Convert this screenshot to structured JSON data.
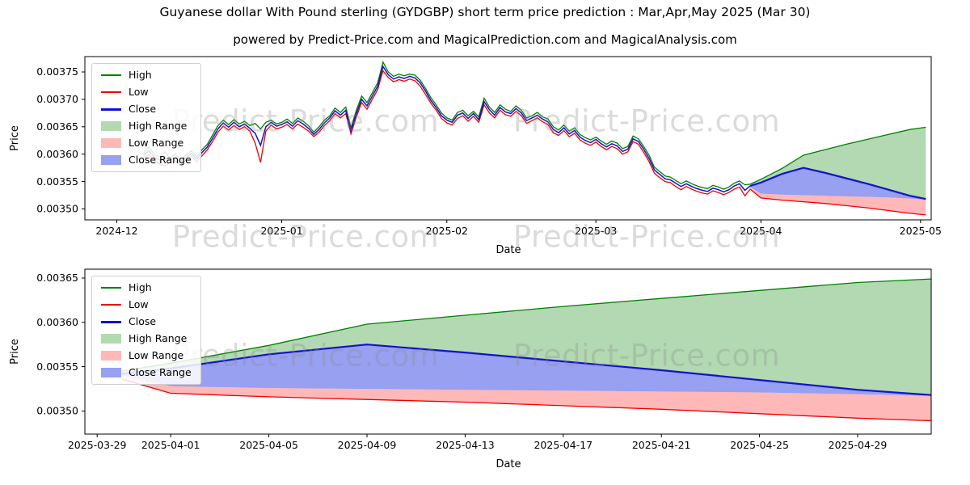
{
  "page": {
    "title": "Guyanese dollar With Pound sterling (GYDGBP) short term price prediction : Mar,Apr,May 2025 (Mar 30)",
    "subtitle": "powered by Predict-Price.com and MagicalPrediction.com and MagicalAnalysis.com",
    "watermark": "Predict-Price.com"
  },
  "colors": {
    "high": "#008000",
    "low": "#ee0000",
    "close": "#1212cc",
    "high_range": "rgba(0,128,0,0.30)",
    "low_range": "rgba(255,0,0,0.28)",
    "close_range": "rgba(25,45,225,0.45)",
    "axis": "#000000"
  },
  "legend": [
    {
      "label": "High",
      "swatch": "line",
      "color_key": "high"
    },
    {
      "label": "Low",
      "swatch": "line",
      "color_key": "low"
    },
    {
      "label": "Close",
      "swatch": "line",
      "color_key": "close"
    },
    {
      "label": "High Range",
      "swatch": "patch",
      "color_key": "high_range"
    },
    {
      "label": "Low Range",
      "swatch": "patch",
      "color_key": "low_range"
    },
    {
      "label": "Close Range",
      "swatch": "patch",
      "color_key": "close_range"
    }
  ],
  "forecast": {
    "x": [
      119,
      121,
      125,
      129,
      133,
      137,
      141,
      145,
      149,
      152
    ],
    "close": [
      354.2,
      354.8,
      356.4,
      357.5,
      356.6,
      355.6,
      354.6,
      353.5,
      352.4,
      351.8
    ],
    "high_upper": [
      354.5,
      355.4,
      357.4,
      359.8,
      360.8,
      361.8,
      362.7,
      363.6,
      364.5,
      364.9
    ],
    "close_lower": [
      354.0,
      352.8,
      352.6,
      352.5,
      352.4,
      352.3,
      352.2,
      352.1,
      351.9,
      351.7
    ],
    "low_lower": [
      353.6,
      352.0,
      351.6,
      351.3,
      351.0,
      350.6,
      350.2,
      349.7,
      349.2,
      348.9
    ]
  },
  "chart_data": [
    {
      "type": "line",
      "title": "",
      "xlabel": "Date",
      "ylabel": "Price",
      "unit": 1e-05,
      "xlim": [
        -6,
        153
      ],
      "ylim": [
        348.0,
        377.8
      ],
      "grid": false,
      "legend_position": "upper-left",
      "x_ticks": {
        "positions": [
          0,
          31,
          62,
          90,
          121,
          151
        ],
        "labels": [
          "2024-12",
          "2025-01",
          "2025-02",
          "2025-03",
          "2025-04",
          "2025-05"
        ]
      },
      "y_ticks": [
        350,
        355,
        360,
        365,
        370,
        375
      ],
      "series_names": [
        "High",
        "Low",
        "Close",
        "High Range",
        "Low Range",
        "Close Range"
      ],
      "history": {
        "x_start": 5,
        "x_step": 1,
        "high": [
          360.2,
          361.3,
          360.0,
          359.5,
          360.4,
          359.3,
          360.0,
          359.0,
          359.8,
          360.6,
          359.5,
          360.8,
          361.8,
          363.5,
          365.2,
          366.2,
          365.4,
          366.3,
          365.5,
          366.0,
          365.2,
          365.6,
          364.6,
          365.8,
          366.2,
          365.5,
          365.8,
          366.4,
          365.6,
          366.6,
          366.0,
          365.2,
          364.0,
          365.0,
          366.2,
          367.0,
          368.4,
          367.6,
          368.6,
          364.8,
          368.0,
          370.6,
          369.4,
          371.2,
          373.0,
          376.8,
          375.0,
          374.2,
          374.6,
          374.3,
          374.6,
          374.4,
          373.5,
          372.0,
          370.3,
          369.0,
          367.5,
          366.6,
          366.2,
          367.6,
          368.0,
          367.0,
          367.8,
          366.8,
          370.2,
          368.6,
          367.6,
          369.0,
          368.2,
          367.8,
          368.8,
          368.0,
          366.6,
          367.0,
          367.6,
          366.8,
          366.4,
          365.0,
          364.4,
          365.3,
          364.2,
          364.8,
          363.6,
          363.0,
          362.6,
          363.1,
          362.4,
          361.8,
          362.4,
          362.0,
          361.0,
          361.4,
          363.3,
          362.8,
          361.4,
          359.8,
          357.6,
          356.8,
          356.0,
          355.8,
          355.2,
          354.6,
          355.1,
          354.6,
          354.2,
          353.9,
          353.7,
          354.3,
          354.0,
          353.6,
          354.0,
          354.7,
          355.1,
          354.4,
          354.5
        ],
        "low": [
          359.3,
          359.9,
          358.9,
          358.2,
          357.9,
          358.4,
          358.8,
          358.1,
          358.9,
          359.6,
          358.6,
          359.7,
          360.8,
          362.3,
          364.0,
          365.1,
          364.4,
          365.2,
          364.5,
          365.0,
          364.2,
          362.0,
          358.5,
          364.2,
          365.3,
          364.6,
          364.9,
          365.4,
          364.6,
          365.5,
          364.9,
          364.2,
          363.2,
          364.0,
          365.2,
          366.1,
          367.4,
          366.6,
          367.4,
          363.7,
          366.8,
          369.4,
          368.2,
          370.0,
          371.8,
          375.2,
          374.0,
          373.2,
          373.6,
          373.3,
          373.7,
          373.4,
          372.4,
          370.9,
          369.3,
          368.0,
          366.5,
          365.7,
          365.3,
          366.5,
          367.0,
          366.0,
          366.9,
          365.8,
          369.0,
          367.5,
          366.6,
          368.0,
          367.2,
          366.9,
          367.8,
          367.0,
          365.6,
          366.1,
          366.6,
          365.9,
          365.4,
          363.9,
          363.4,
          364.3,
          363.2,
          363.8,
          362.6,
          362.0,
          361.6,
          362.2,
          361.4,
          360.8,
          361.4,
          361.0,
          360.0,
          360.4,
          362.3,
          361.8,
          360.3,
          358.6,
          356.5,
          355.7,
          355.0,
          354.8,
          354.1,
          353.5,
          354.1,
          353.6,
          353.2,
          352.9,
          352.7,
          353.3,
          353.0,
          352.6,
          353.0,
          353.6,
          354.0,
          352.4,
          353.6
        ],
        "close": [
          359.8,
          360.6,
          359.5,
          358.9,
          359.2,
          358.9,
          359.4,
          358.6,
          359.4,
          360.1,
          359.1,
          360.3,
          361.3,
          362.9,
          364.6,
          365.7,
          364.9,
          365.8,
          365.0,
          365.5,
          364.7,
          363.8,
          361.6,
          365.0,
          365.8,
          365.1,
          365.4,
          365.9,
          365.1,
          366.1,
          365.5,
          364.7,
          363.6,
          364.5,
          365.7,
          366.6,
          367.9,
          367.1,
          368.0,
          364.3,
          367.4,
          370.0,
          368.8,
          370.6,
          372.4,
          376.0,
          374.5,
          373.7,
          374.1,
          373.8,
          374.2,
          373.9,
          373.0,
          371.5,
          369.8,
          368.5,
          367.0,
          366.2,
          365.8,
          367.1,
          367.5,
          366.5,
          367.4,
          366.3,
          369.6,
          368.1,
          367.1,
          368.5,
          367.7,
          367.4,
          368.3,
          367.5,
          366.1,
          366.6,
          367.1,
          366.4,
          365.9,
          364.5,
          363.9,
          364.8,
          363.7,
          364.3,
          363.1,
          362.5,
          362.1,
          362.7,
          361.9,
          361.3,
          361.9,
          361.5,
          360.5,
          360.9,
          362.8,
          362.3,
          360.9,
          359.2,
          357.1,
          356.3,
          355.5,
          355.3,
          354.7,
          354.1,
          354.6,
          354.1,
          353.7,
          353.4,
          353.2,
          353.8,
          353.5,
          353.1,
          353.5,
          354.2,
          354.6,
          353.4,
          354.2
        ]
      }
    },
    {
      "type": "line",
      "title": "",
      "xlabel": "Date",
      "ylabel": "Price",
      "unit": 1e-05,
      "xlim": [
        117.5,
        152
      ],
      "ylim": [
        347.4,
        366.0
      ],
      "grid": false,
      "legend_position": "upper-left",
      "x_ticks": {
        "positions": [
          118,
          121,
          125,
          129,
          133,
          137,
          141,
          145,
          149
        ],
        "labels": [
          "2025-03-29",
          "2025-04-01",
          "2025-04-05",
          "2025-04-09",
          "2025-04-13",
          "2025-04-17",
          "2025-04-21",
          "2025-04-25",
          "2025-04-29"
        ]
      },
      "y_ticks": [
        350,
        355,
        360,
        365
      ],
      "series_names": [
        "High",
        "Low",
        "Close",
        "High Range",
        "Low Range",
        "Close Range"
      ]
    }
  ]
}
